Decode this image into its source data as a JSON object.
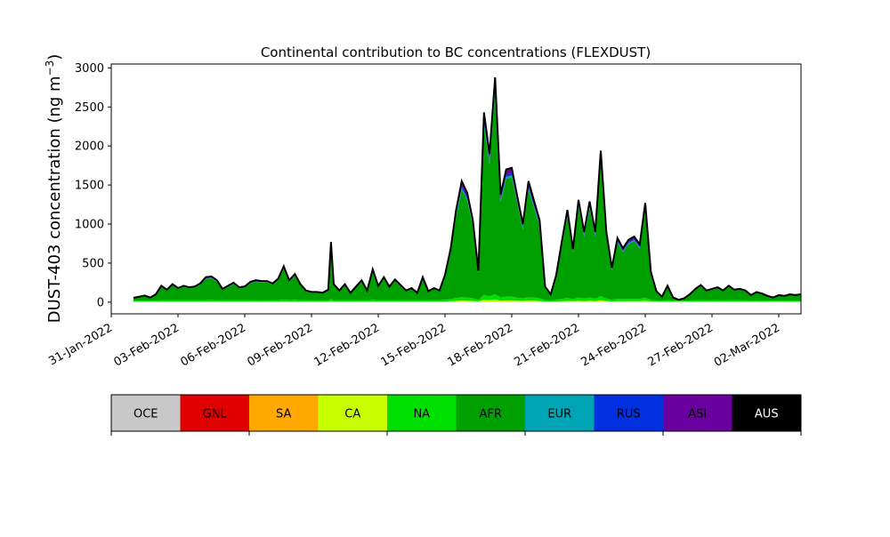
{
  "chart_data": {
    "type": "area",
    "title": "Continental contribution to BC concentrations (FLEXDUST)",
    "ylabel_main": "DUST-403 concentration (ng m",
    "ylabel_exp": "−3",
    "ylabel_close": ")",
    "xlabel": "",
    "ylim": [
      -150,
      3050
    ],
    "yticks": [
      0,
      500,
      1000,
      1500,
      2000,
      2500,
      3000
    ],
    "xlim": [
      "2022-01-31T00:00",
      "2022-03-03T00:00"
    ],
    "xticks": [
      "31-Jan-2022",
      "03-Feb-2022",
      "06-Feb-2022",
      "09-Feb-2022",
      "12-Feb-2022",
      "15-Feb-2022",
      "18-Feb-2022",
      "21-Feb-2022",
      "24-Feb-2022",
      "27-Feb-2022",
      "02-Mar-2022"
    ],
    "xtick_dates": [
      "2022-01-31",
      "2022-02-03",
      "2022-02-06",
      "2022-02-09",
      "2022-02-12",
      "2022-02-15",
      "2022-02-18",
      "2022-02-21",
      "2022-02-24",
      "2022-02-27",
      "2022-03-02"
    ],
    "series_order": [
      "OCE",
      "GNL",
      "SA",
      "CA",
      "NA",
      "AFR",
      "EUR",
      "RUS",
      "ASI",
      "AUS"
    ],
    "colors": {
      "OCE": "#c8c8c8",
      "GNL": "#e00000",
      "SA": "#ffa800",
      "CA": "#c8ff00",
      "NA": "#00e000",
      "AFR": "#00a000",
      "EUR": "#00a5b5",
      "RUS": "#0030e0",
      "ASI": "#6a00a0",
      "AUS": "#000000"
    },
    "total_series": [
      [
        "2022-02-01",
        55
      ],
      [
        "2022-02-01T12:00",
        85
      ],
      [
        "2022-02-01T18:00",
        60
      ],
      [
        "2022-02-02",
        100
      ],
      [
        "2022-02-02T06:00",
        210
      ],
      [
        "2022-02-02T12:00",
        160
      ],
      [
        "2022-02-02T18:00",
        230
      ],
      [
        "2022-02-03",
        180
      ],
      [
        "2022-02-03T06:00",
        210
      ],
      [
        "2022-02-03T12:00",
        190
      ],
      [
        "2022-02-03T18:00",
        200
      ],
      [
        "2022-02-04",
        240
      ],
      [
        "2022-02-04T06:00",
        320
      ],
      [
        "2022-02-04T12:00",
        330
      ],
      [
        "2022-02-04T18:00",
        280
      ],
      [
        "2022-02-05",
        170
      ],
      [
        "2022-02-05T06:00",
        210
      ],
      [
        "2022-02-05T12:00",
        250
      ],
      [
        "2022-02-05T18:00",
        190
      ],
      [
        "2022-02-06",
        200
      ],
      [
        "2022-02-06T06:00",
        260
      ],
      [
        "2022-02-06T12:00",
        280
      ],
      [
        "2022-02-06T18:00",
        270
      ],
      [
        "2022-02-07",
        270
      ],
      [
        "2022-02-07T06:00",
        240
      ],
      [
        "2022-02-07T12:00",
        300
      ],
      [
        "2022-02-07T18:00",
        460
      ],
      [
        "2022-02-08",
        280
      ],
      [
        "2022-02-08T06:00",
        360
      ],
      [
        "2022-02-08T12:00",
        230
      ],
      [
        "2022-02-08T18:00",
        150
      ],
      [
        "2022-02-09",
        130
      ],
      [
        "2022-02-09T06:00",
        130
      ],
      [
        "2022-02-09T12:00",
        120
      ],
      [
        "2022-02-09T18:00",
        160
      ],
      [
        "2022-02-09T21:00",
        770
      ],
      [
        "2022-02-10",
        230
      ],
      [
        "2022-02-10T06:00",
        150
      ],
      [
        "2022-02-10T12:00",
        230
      ],
      [
        "2022-02-10T18:00",
        120
      ],
      [
        "2022-02-11",
        200
      ],
      [
        "2022-02-11T06:00",
        280
      ],
      [
        "2022-02-11T12:00",
        150
      ],
      [
        "2022-02-11T18:00",
        420
      ],
      [
        "2022-02-12",
        210
      ],
      [
        "2022-02-12T06:00",
        320
      ],
      [
        "2022-02-12T12:00",
        200
      ],
      [
        "2022-02-12T18:00",
        290
      ],
      [
        "2022-02-13",
        220
      ],
      [
        "2022-02-13T06:00",
        150
      ],
      [
        "2022-02-13T12:00",
        180
      ],
      [
        "2022-02-13T18:00",
        120
      ],
      [
        "2022-02-14",
        320
      ],
      [
        "2022-02-14T06:00",
        140
      ],
      [
        "2022-02-14T12:00",
        180
      ],
      [
        "2022-02-14T18:00",
        150
      ],
      [
        "2022-02-15",
        350
      ],
      [
        "2022-02-15T06:00",
        680
      ],
      [
        "2022-02-15T12:00",
        1180
      ],
      [
        "2022-02-15T18:00",
        1550
      ],
      [
        "2022-02-16",
        1400
      ],
      [
        "2022-02-16T06:00",
        1050
      ],
      [
        "2022-02-16T12:00",
        400
      ],
      [
        "2022-02-16T18:00",
        2430
      ],
      [
        "2022-02-17",
        1900
      ],
      [
        "2022-02-17T06:00",
        2880
      ],
      [
        "2022-02-17T12:00",
        1380
      ],
      [
        "2022-02-17T18:00",
        1700
      ],
      [
        "2022-02-18",
        1720
      ],
      [
        "2022-02-18T06:00",
        1350
      ],
      [
        "2022-02-18T12:00",
        1000
      ],
      [
        "2022-02-18T18:00",
        1550
      ],
      [
        "2022-02-19",
        1300
      ],
      [
        "2022-02-19T06:00",
        1050
      ],
      [
        "2022-02-19T12:00",
        200
      ],
      [
        "2022-02-19T18:00",
        100
      ],
      [
        "2022-02-20",
        350
      ],
      [
        "2022-02-20T06:00",
        780
      ],
      [
        "2022-02-20T12:00",
        1180
      ],
      [
        "2022-02-20T18:00",
        680
      ],
      [
        "2022-02-21",
        1310
      ],
      [
        "2022-02-21T06:00",
        900
      ],
      [
        "2022-02-21T12:00",
        1290
      ],
      [
        "2022-02-21T18:00",
        900
      ],
      [
        "2022-02-22",
        1940
      ],
      [
        "2022-02-22T06:00",
        900
      ],
      [
        "2022-02-22T12:00",
        440
      ],
      [
        "2022-02-22T18:00",
        820
      ],
      [
        "2022-02-23",
        690
      ],
      [
        "2022-02-23T06:00",
        800
      ],
      [
        "2022-02-23T12:00",
        840
      ],
      [
        "2022-02-23T18:00",
        740
      ],
      [
        "2022-02-24",
        1270
      ],
      [
        "2022-02-24T06:00",
        390
      ],
      [
        "2022-02-24T12:00",
        140
      ],
      [
        "2022-02-24T18:00",
        70
      ],
      [
        "2022-02-25",
        210
      ],
      [
        "2022-02-25T06:00",
        60
      ],
      [
        "2022-02-25T12:00",
        30
      ],
      [
        "2022-02-25T18:00",
        50
      ],
      [
        "2022-02-26",
        100
      ],
      [
        "2022-02-26T06:00",
        170
      ],
      [
        "2022-02-26T12:00",
        220
      ],
      [
        "2022-02-26T18:00",
        150
      ],
      [
        "2022-02-27",
        170
      ],
      [
        "2022-02-27T06:00",
        190
      ],
      [
        "2022-02-27T12:00",
        150
      ],
      [
        "2022-02-27T18:00",
        210
      ],
      [
        "2022-02-28",
        160
      ],
      [
        "2022-02-28T06:00",
        170
      ],
      [
        "2022-02-28T12:00",
        150
      ],
      [
        "2022-02-28T18:00",
        90
      ],
      [
        "2022-03-01",
        130
      ],
      [
        "2022-03-01T06:00",
        110
      ],
      [
        "2022-03-01T12:00",
        80
      ],
      [
        "2022-03-01T18:00",
        60
      ],
      [
        "2022-03-02",
        90
      ],
      [
        "2022-03-02T06:00",
        80
      ],
      [
        "2022-03-02T12:00",
        100
      ],
      [
        "2022-03-02T18:00",
        90
      ],
      [
        "2022-03-03",
        100
      ]
    ],
    "legend_layout": "horizontal colorbar below plot"
  }
}
